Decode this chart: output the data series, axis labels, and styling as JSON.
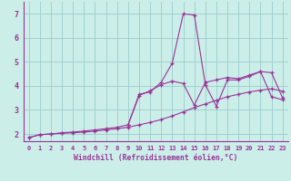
{
  "xlabel": "Windchill (Refroidissement éolien,°C)",
  "background_color": "#cceee8",
  "line_color": "#993399",
  "grid_color": "#99cccc",
  "xlim": [
    -0.5,
    23.5
  ],
  "ylim": [
    1.7,
    7.5
  ],
  "yticks": [
    2,
    3,
    4,
    5,
    6,
    7
  ],
  "xticks": [
    0,
    1,
    2,
    3,
    4,
    5,
    6,
    7,
    8,
    9,
    10,
    11,
    12,
    13,
    14,
    15,
    16,
    17,
    18,
    19,
    20,
    21,
    22,
    23
  ],
  "series1_x": [
    0,
    1,
    2,
    3,
    4,
    5,
    6,
    7,
    8,
    9,
    10,
    11,
    12,
    13,
    14,
    15,
    16,
    17,
    18,
    19,
    20,
    21,
    22,
    23
  ],
  "series1_y": [
    1.85,
    1.97,
    2.0,
    2.03,
    2.05,
    2.08,
    2.12,
    2.17,
    2.22,
    2.28,
    2.38,
    2.48,
    2.6,
    2.75,
    2.92,
    3.1,
    3.25,
    3.4,
    3.55,
    3.65,
    3.75,
    3.82,
    3.88,
    3.78
  ],
  "series2_x": [
    0,
    1,
    2,
    3,
    4,
    5,
    6,
    7,
    8,
    9,
    10,
    11,
    12,
    13,
    14,
    15,
    16,
    17,
    18,
    19,
    20,
    21,
    22,
    23
  ],
  "series2_y": [
    1.85,
    1.97,
    2.0,
    2.05,
    2.08,
    2.12,
    2.17,
    2.22,
    2.28,
    2.38,
    3.65,
    3.75,
    4.15,
    4.95,
    7.0,
    6.95,
    4.05,
    3.15,
    4.25,
    4.25,
    4.4,
    4.6,
    4.55,
    3.5
  ],
  "series3_x": [
    9,
    10,
    11,
    12,
    13,
    14,
    15,
    16,
    17,
    18,
    19,
    20,
    21,
    22,
    23
  ],
  "series3_y": [
    2.38,
    3.6,
    3.8,
    4.05,
    4.2,
    4.1,
    3.2,
    4.15,
    4.25,
    4.35,
    4.3,
    4.45,
    4.6,
    3.55,
    3.42
  ]
}
